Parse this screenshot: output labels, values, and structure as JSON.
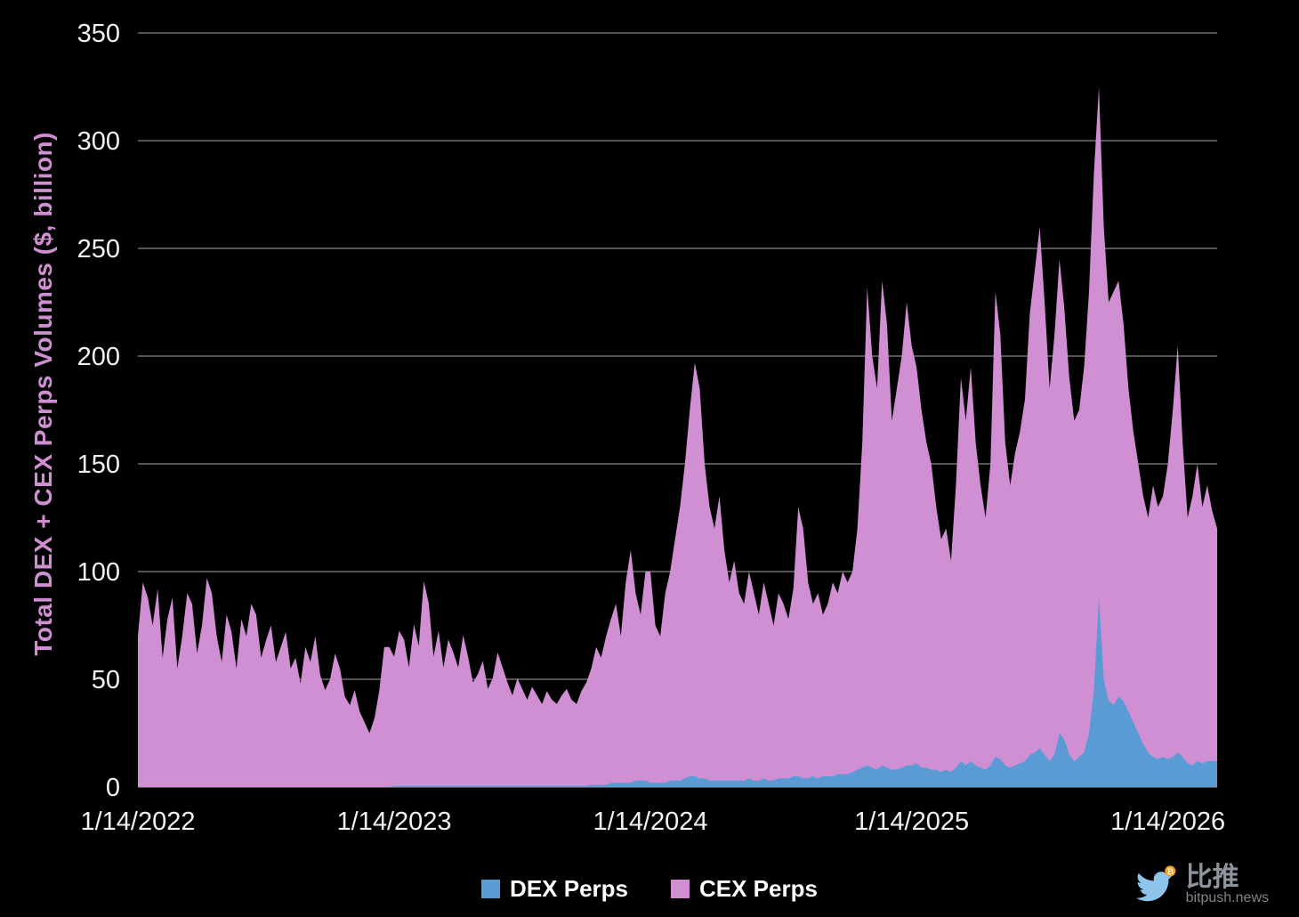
{
  "watermark": {
    "brand": "比推",
    "site": "bitpush.news"
  },
  "chart_data": {
    "type": "area",
    "stacked": true,
    "y_axis_title": "Total DEX + CEX Perps Volumes ($, billion)",
    "x_start_date": "1/14/2022",
    "x_sample_interval": "weekly",
    "x_tick_labels": [
      "1/14/2022",
      "1/14/2023",
      "1/14/2024",
      "1/14/2025",
      "1/14/2026"
    ],
    "x_tick_indices": [
      0,
      52,
      104,
      157,
      209
    ],
    "ylim": [
      0,
      350
    ],
    "y_ticks": [
      0,
      50,
      100,
      150,
      200,
      250,
      300,
      350
    ],
    "grid": "horizontal",
    "legend_position": "bottom-center",
    "background": "#000000",
    "gridline_color": "#545454",
    "axis_text_color": "#f2f2f2",
    "series": [
      {
        "name": "DEX Perps",
        "color": "#5b9bd5",
        "values": [
          0,
          0,
          0,
          0,
          0,
          0,
          0,
          0,
          0,
          0,
          0,
          0,
          0,
          0,
          0,
          0,
          0,
          0,
          0,
          0,
          0,
          0,
          0,
          0,
          0,
          0,
          0,
          0,
          0,
          0,
          0,
          0,
          0,
          0,
          0,
          0,
          0,
          0,
          0,
          0,
          0,
          0,
          0,
          0,
          0,
          0,
          0,
          0,
          0,
          0,
          0,
          0,
          0.5,
          0.5,
          0.5,
          0.5,
          0.5,
          0.5,
          0.5,
          0.5,
          0.5,
          0.5,
          0.5,
          0.5,
          0.5,
          0.5,
          0.5,
          0.5,
          0.5,
          0.5,
          0.5,
          0.5,
          0.5,
          0.5,
          0.5,
          0.5,
          0.5,
          0.5,
          0.5,
          0.5,
          0.5,
          0.5,
          0.5,
          0.5,
          0.5,
          0.5,
          0.5,
          0.5,
          0.5,
          0.5,
          0.5,
          0.5,
          1,
          1,
          1,
          1,
          2,
          2,
          2,
          2,
          2,
          3,
          3,
          3,
          2,
          2,
          2,
          2,
          3,
          3,
          3,
          4,
          5,
          5,
          4,
          4,
          3,
          3,
          3,
          3,
          3,
          3,
          3,
          3,
          4,
          3,
          3,
          4,
          3,
          3,
          4,
          4,
          4,
          5,
          5,
          4,
          4,
          5,
          4,
          5,
          5,
          5,
          6,
          6,
          6,
          7,
          8,
          9,
          10,
          9,
          8,
          10,
          9,
          8,
          8,
          9,
          10,
          10,
          11,
          9,
          9,
          8,
          8,
          7,
          8,
          7,
          9,
          12,
          10,
          12,
          10,
          9,
          8,
          10,
          14,
          13,
          10,
          9,
          10,
          11,
          12,
          15,
          16,
          18,
          15,
          12,
          15,
          25,
          22,
          15,
          12,
          14,
          16,
          25,
          45,
          88,
          50,
          40,
          38,
          42,
          40,
          35,
          30,
          25,
          20,
          16,
          14,
          13,
          14,
          13,
          14,
          16,
          14,
          11,
          10,
          12,
          11,
          12,
          12,
          12
        ]
      },
      {
        "name": "CEX Perps",
        "color": "#d18fd3",
        "values": [
          70,
          95,
          88,
          75,
          92,
          60,
          78,
          88,
          55,
          70,
          90,
          85,
          62,
          75,
          97,
          90,
          70,
          58,
          80,
          72,
          55,
          78,
          70,
          85,
          80,
          60,
          68,
          75,
          58,
          65,
          72,
          55,
          60,
          48,
          65,
          58,
          70,
          52,
          45,
          50,
          62,
          55,
          42,
          38,
          45,
          35,
          30,
          25,
          32,
          45,
          65,
          65,
          60,
          72,
          68,
          55,
          75,
          65,
          95,
          85,
          60,
          72,
          55,
          68,
          62,
          55,
          70,
          60,
          48,
          52,
          58,
          45,
          50,
          62,
          55,
          48,
          42,
          50,
          45,
          40,
          46,
          42,
          38,
          44,
          40,
          38,
          42,
          45,
          40,
          38,
          44,
          48,
          54,
          64,
          59,
          69,
          76,
          83,
          68,
          93,
          108,
          87,
          77,
          97,
          98,
          73,
          68,
          88,
          97,
          112,
          127,
          146,
          170,
          192,
          181,
          146,
          127,
          117,
          132,
          107,
          92,
          102,
          87,
          82,
          96,
          87,
          77,
          91,
          82,
          72,
          86,
          81,
          74,
          87,
          125,
          116,
          91,
          80,
          86,
          75,
          80,
          90,
          84,
          94,
          89,
          93,
          112,
          151,
          222,
          191,
          177,
          225,
          206,
          162,
          177,
          191,
          215,
          195,
          184,
          166,
          151,
          142,
          122,
          108,
          112,
          98,
          131,
          178,
          160,
          183,
          150,
          131,
          117,
          140,
          216,
          197,
          150,
          131,
          145,
          154,
          168,
          205,
          224,
          242,
          210,
          173,
          195,
          220,
          200,
          175,
          158,
          161,
          179,
          205,
          240,
          237,
          210,
          185,
          192,
          193,
          175,
          150,
          135,
          125,
          115,
          109,
          126,
          117,
          121,
          137,
          161,
          189,
          146,
          114,
          125,
          138,
          119,
          128,
          116,
          108
        ]
      }
    ]
  }
}
